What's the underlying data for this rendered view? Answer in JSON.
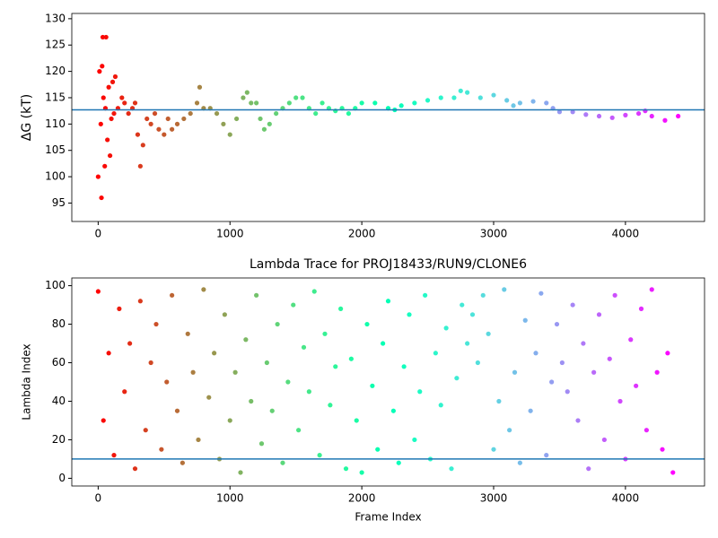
{
  "chart_data": [
    {
      "type": "scatter",
      "ylabel": "ΔG (kT)",
      "x": [
        0,
        10,
        20,
        25,
        30,
        35,
        40,
        50,
        55,
        60,
        70,
        80,
        90,
        100,
        110,
        120,
        130,
        150,
        180,
        200,
        230,
        260,
        280,
        300,
        320,
        340,
        370,
        400,
        430,
        460,
        500,
        530,
        560,
        600,
        650,
        700,
        750,
        770,
        800,
        850,
        900,
        950,
        1000,
        1050,
        1100,
        1130,
        1160,
        1200,
        1230,
        1260,
        1300,
        1350,
        1400,
        1450,
        1500,
        1550,
        1600,
        1650,
        1700,
        1750,
        1800,
        1850,
        1900,
        1950,
        2000,
        2100,
        2200,
        2250,
        2300,
        2400,
        2500,
        2600,
        2700,
        2750,
        2800,
        2900,
        3000,
        3100,
        3150,
        3200,
        3300,
        3400,
        3450,
        3500,
        3600,
        3700,
        3800,
        3900,
        4000,
        4100,
        4150,
        4200,
        4300,
        4400
      ],
      "values": [
        100,
        120,
        110,
        96,
        121,
        126.5,
        115,
        102,
        113,
        126.5,
        107,
        117,
        104,
        111,
        118,
        112,
        119,
        113,
        115,
        114,
        112,
        113,
        114,
        108,
        102,
        106,
        111,
        110,
        112,
        109,
        108,
        111,
        109,
        110,
        111,
        112,
        114,
        117,
        113,
        113,
        112,
        110,
        108,
        111,
        115,
        116,
        114,
        114,
        111,
        109,
        110,
        112,
        113,
        114,
        115,
        115,
        113,
        112,
        114,
        113,
        112.5,
        113,
        112,
        113,
        114,
        114,
        113,
        112.7,
        113.5,
        114,
        114.5,
        115,
        115,
        116.3,
        116,
        115,
        115.5,
        114.5,
        113.5,
        114,
        114.3,
        114,
        113,
        112.3,
        112.3,
        111.8,
        111.5,
        111.2,
        111.7,
        112,
        112.5,
        111.5,
        110.7,
        111.5
      ],
      "colormap": "rainbow",
      "colormap_reversed": true,
      "hline": 112.7,
      "hline_color": "#1f77b4",
      "xlim": [
        -200,
        4600
      ],
      "xticks": [
        0,
        1000,
        2000,
        3000,
        4000
      ],
      "ylim": [
        91.5,
        131
      ],
      "yticks": [
        95,
        100,
        105,
        110,
        115,
        120,
        125,
        130
      ]
    },
    {
      "type": "scatter",
      "title": "Lambda Trace for PROJ18433/RUN9/CLONE6",
      "xlabel": "Frame Index",
      "ylabel": "Lambda Index",
      "x": [
        0,
        40,
        80,
        120,
        160,
        200,
        240,
        280,
        320,
        360,
        400,
        440,
        480,
        520,
        560,
        600,
        640,
        680,
        720,
        760,
        800,
        840,
        880,
        920,
        960,
        1000,
        1040,
        1080,
        1120,
        1160,
        1200,
        1240,
        1280,
        1320,
        1360,
        1400,
        1440,
        1480,
        1520,
        1560,
        1600,
        1640,
        1680,
        1720,
        1760,
        1800,
        1840,
        1880,
        1920,
        1960,
        2000,
        2040,
        2080,
        2120,
        2160,
        2200,
        2240,
        2280,
        2320,
        2360,
        2400,
        2440,
        2480,
        2520,
        2560,
        2600,
        2640,
        2680,
        2720,
        2760,
        2800,
        2840,
        2880,
        2920,
        2960,
        3000,
        3040,
        3080,
        3120,
        3160,
        3200,
        3240,
        3280,
        3320,
        3360,
        3400,
        3440,
        3480,
        3520,
        3560,
        3600,
        3640,
        3680,
        3720,
        3760,
        3800,
        3840,
        3880,
        3920,
        3960,
        4000,
        4040,
        4080,
        4120,
        4160,
        4200,
        4240,
        4280,
        4320,
        4360
      ],
      "values": [
        97,
        30,
        65,
        12,
        88,
        45,
        70,
        5,
        92,
        25,
        60,
        80,
        15,
        50,
        95,
        35,
        8,
        75,
        55,
        20,
        98,
        42,
        65,
        10,
        85,
        30,
        55,
        3,
        72,
        40,
        95,
        18,
        60,
        35,
        80,
        8,
        50,
        90,
        25,
        68,
        45,
        97,
        12,
        75,
        38,
        58,
        88,
        5,
        62,
        30,
        3,
        80,
        48,
        15,
        70,
        92,
        35,
        8,
        58,
        85,
        20,
        45,
        95,
        10,
        65,
        38,
        78,
        5,
        52,
        90,
        70,
        85,
        60,
        95,
        75,
        15,
        40,
        98,
        25,
        55,
        8,
        82,
        35,
        65,
        96,
        12,
        50,
        80,
        60,
        45,
        90,
        30,
        70,
        5,
        55,
        85,
        20,
        62,
        95,
        40,
        10,
        72,
        48,
        88,
        25,
        98,
        55,
        15,
        65,
        3
      ],
      "colormap": "rainbow",
      "colormap_reversed": true,
      "hline": 10,
      "hline_color": "#1f77b4",
      "xlim": [
        -200,
        4600
      ],
      "xticks": [
        0,
        1000,
        2000,
        3000,
        4000
      ],
      "ylim": [
        -4,
        104
      ],
      "yticks": [
        0,
        20,
        40,
        60,
        80,
        100
      ]
    }
  ]
}
